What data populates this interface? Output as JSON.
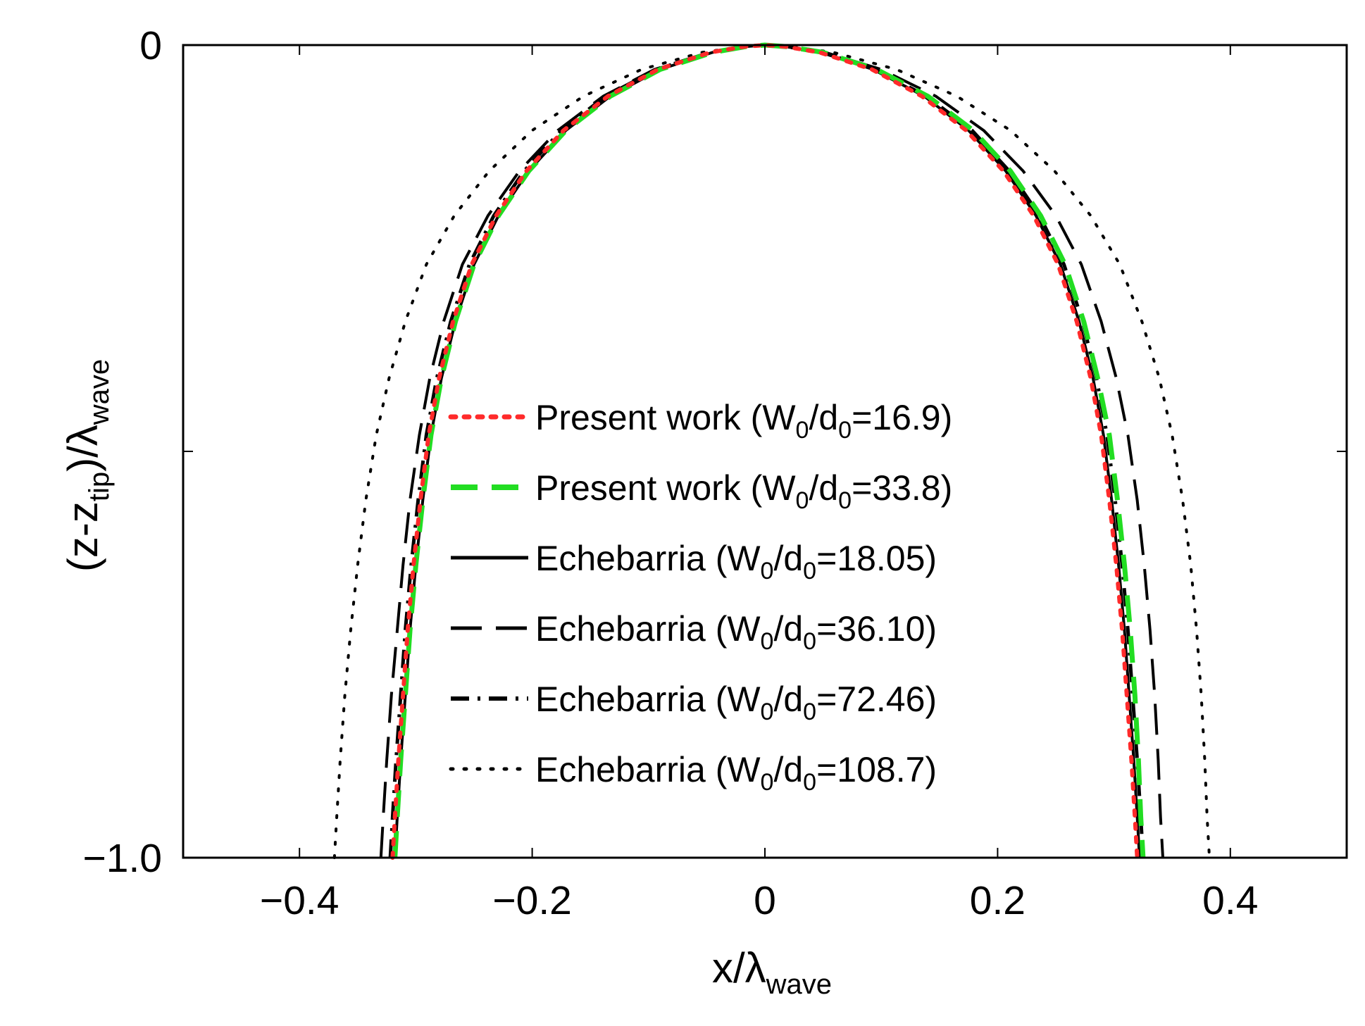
{
  "chart_data": {
    "type": "line",
    "xlabel": {
      "main": "x/λ",
      "sub": "wave"
    },
    "ylabel": {
      "main_a": "(z-z",
      "sub_a": "tip",
      "main_b": ")/λ",
      "sub_b": "wave"
    },
    "xlim": [
      -0.5,
      0.5
    ],
    "ylim": [
      -1.0,
      0.0
    ],
    "xticks": [
      -0.4,
      -0.2,
      0,
      0.2,
      0.4
    ],
    "xtick_labels": [
      "−0.4",
      "−0.2",
      "0",
      "0.2",
      "0.4"
    ],
    "yticks": [
      0,
      -0.5,
      -1.0
    ],
    "ytick_labels": [
      "0",
      "",
      "−1.0"
    ],
    "grid": false,
    "legend_position": "center",
    "series": [
      {
        "name_main": "Present work (W",
        "name_mid": "/d",
        "name_tail": "=16.9)",
        "name_sub": "0",
        "color": "#ff2a2a",
        "style": "dotted",
        "x": [
          -0.32,
          -0.318,
          -0.315,
          -0.311,
          -0.307,
          -0.302,
          -0.296,
          -0.289,
          -0.28,
          -0.268,
          -0.252,
          -0.231,
          -0.205,
          -0.173,
          -0.135,
          -0.092,
          -0.047,
          -0.018,
          0.0,
          0.018,
          0.047,
          0.092,
          0.135,
          0.173,
          0.205,
          0.231,
          0.252,
          0.268,
          0.28,
          0.289,
          0.296,
          0.302,
          0.307,
          0.311,
          0.315,
          0.318,
          0.32
        ],
        "y": [
          -1.0,
          -0.95,
          -0.88,
          -0.8,
          -0.72,
          -0.64,
          -0.56,
          -0.48,
          -0.41,
          -0.34,
          -0.27,
          -0.21,
          -0.155,
          -0.105,
          -0.063,
          -0.03,
          -0.009,
          -0.002,
          0.0,
          -0.002,
          -0.009,
          -0.03,
          -0.063,
          -0.105,
          -0.155,
          -0.21,
          -0.27,
          -0.34,
          -0.41,
          -0.48,
          -0.56,
          -0.64,
          -0.72,
          -0.8,
          -0.88,
          -0.95,
          -1.0
        ]
      },
      {
        "name_main": "Present work (W",
        "name_mid": "/d",
        "name_tail": "=33.8)",
        "name_sub": "0",
        "color": "#22dd22",
        "style": "dashed",
        "x": [
          -0.318,
          -0.316,
          -0.313,
          -0.309,
          -0.305,
          -0.3,
          -0.294,
          -0.287,
          -0.278,
          -0.266,
          -0.25,
          -0.229,
          -0.203,
          -0.171,
          -0.133,
          -0.09,
          -0.045,
          -0.017,
          0.0,
          0.019,
          0.05,
          0.096,
          0.14,
          0.179,
          0.211,
          0.237,
          0.258,
          0.274,
          0.286,
          0.296,
          0.303,
          0.309,
          0.314,
          0.318,
          0.321,
          0.323,
          0.325
        ],
        "y": [
          -1.0,
          -0.95,
          -0.88,
          -0.8,
          -0.72,
          -0.64,
          -0.56,
          -0.48,
          -0.41,
          -0.34,
          -0.27,
          -0.21,
          -0.155,
          -0.105,
          -0.063,
          -0.03,
          -0.009,
          -0.002,
          0.0,
          -0.002,
          -0.009,
          -0.03,
          -0.063,
          -0.105,
          -0.155,
          -0.21,
          -0.27,
          -0.34,
          -0.41,
          -0.48,
          -0.56,
          -0.64,
          -0.72,
          -0.8,
          -0.88,
          -0.95,
          -1.0
        ]
      },
      {
        "name_main": "Echebarria (W",
        "name_mid": "/d",
        "name_tail": "=18.05)",
        "name_sub": "0",
        "color": "#000000",
        "style": "solid",
        "x": [
          -0.318,
          -0.316,
          -0.313,
          -0.309,
          -0.305,
          -0.3,
          -0.294,
          -0.287,
          -0.278,
          -0.266,
          -0.25,
          -0.229,
          -0.203,
          -0.171,
          -0.133,
          -0.09,
          -0.045,
          -0.017,
          0.0,
          0.018,
          0.048,
          0.093,
          0.137,
          0.175,
          0.207,
          0.233,
          0.254,
          0.27,
          0.282,
          0.291,
          0.298,
          0.304,
          0.309,
          0.313,
          0.317,
          0.32,
          0.322
        ],
        "y": [
          -1.0,
          -0.95,
          -0.88,
          -0.8,
          -0.72,
          -0.64,
          -0.56,
          -0.48,
          -0.41,
          -0.34,
          -0.27,
          -0.21,
          -0.155,
          -0.105,
          -0.063,
          -0.03,
          -0.009,
          -0.002,
          0.0,
          -0.002,
          -0.009,
          -0.03,
          -0.063,
          -0.105,
          -0.155,
          -0.21,
          -0.27,
          -0.34,
          -0.41,
          -0.48,
          -0.56,
          -0.64,
          -0.72,
          -0.8,
          -0.88,
          -0.95,
          -1.0
        ]
      },
      {
        "name_main": "Echebarria (W",
        "name_mid": "/d",
        "name_tail": "=36.10)",
        "name_sub": "0",
        "color": "#000000",
        "style": "longdash",
        "x": [
          -0.33,
          -0.328,
          -0.325,
          -0.321,
          -0.316,
          -0.311,
          -0.305,
          -0.297,
          -0.288,
          -0.276,
          -0.26,
          -0.238,
          -0.211,
          -0.178,
          -0.139,
          -0.095,
          -0.048,
          -0.018,
          0.0,
          0.02,
          0.052,
          0.1,
          0.147,
          0.188,
          0.222,
          0.25,
          0.272,
          0.289,
          0.302,
          0.312,
          0.32,
          0.326,
          0.331,
          0.335,
          0.338,
          0.34,
          0.342
        ],
        "y": [
          -1.0,
          -0.95,
          -0.88,
          -0.8,
          -0.72,
          -0.64,
          -0.56,
          -0.48,
          -0.41,
          -0.34,
          -0.27,
          -0.21,
          -0.155,
          -0.105,
          -0.063,
          -0.03,
          -0.009,
          -0.002,
          0.0,
          -0.002,
          -0.009,
          -0.03,
          -0.063,
          -0.105,
          -0.155,
          -0.21,
          -0.27,
          -0.34,
          -0.41,
          -0.48,
          -0.56,
          -0.64,
          -0.72,
          -0.8,
          -0.88,
          -0.95,
          -1.0
        ]
      },
      {
        "name_main": "Echebarria (W",
        "name_mid": "/d",
        "name_tail": "=72.46)",
        "name_sub": "0",
        "color": "#000000",
        "style": "dashdot",
        "x": [
          -0.322,
          -0.32,
          -0.317,
          -0.313,
          -0.309,
          -0.304,
          -0.298,
          -0.291,
          -0.282,
          -0.27,
          -0.254,
          -0.233,
          -0.207,
          -0.175,
          -0.137,
          -0.093,
          -0.047,
          -0.018,
          0.0,
          0.019,
          0.049,
          0.095,
          0.139,
          0.178,
          0.21,
          0.236,
          0.257,
          0.273,
          0.285,
          0.294,
          0.301,
          0.307,
          0.312,
          0.316,
          0.32,
          0.323,
          0.325
        ],
        "y": [
          -1.0,
          -0.95,
          -0.88,
          -0.8,
          -0.72,
          -0.64,
          -0.56,
          -0.48,
          -0.41,
          -0.34,
          -0.27,
          -0.21,
          -0.155,
          -0.105,
          -0.063,
          -0.03,
          -0.009,
          -0.002,
          0.0,
          -0.002,
          -0.009,
          -0.03,
          -0.063,
          -0.105,
          -0.155,
          -0.21,
          -0.27,
          -0.34,
          -0.41,
          -0.48,
          -0.56,
          -0.64,
          -0.72,
          -0.8,
          -0.88,
          -0.95,
          -1.0
        ]
      },
      {
        "name_main": "Echebarria (W",
        "name_mid": "/d",
        "name_tail": "=108.7)",
        "name_sub": "0",
        "color": "#000000",
        "style": "sparsedot",
        "x": [
          -0.37,
          -0.368,
          -0.365,
          -0.361,
          -0.356,
          -0.35,
          -0.343,
          -0.334,
          -0.323,
          -0.309,
          -0.291,
          -0.267,
          -0.237,
          -0.2,
          -0.156,
          -0.106,
          -0.054,
          -0.02,
          0.0,
          0.022,
          0.059,
          0.113,
          0.165,
          0.211,
          0.249,
          0.28,
          0.305,
          0.324,
          0.339,
          0.35,
          0.359,
          0.366,
          0.371,
          0.375,
          0.378,
          0.38,
          0.382
        ],
        "y": [
          -1.0,
          -0.95,
          -0.88,
          -0.8,
          -0.72,
          -0.64,
          -0.56,
          -0.48,
          -0.41,
          -0.34,
          -0.27,
          -0.21,
          -0.155,
          -0.105,
          -0.063,
          -0.03,
          -0.009,
          -0.002,
          0.0,
          -0.002,
          -0.009,
          -0.03,
          -0.063,
          -0.105,
          -0.155,
          -0.21,
          -0.27,
          -0.34,
          -0.41,
          -0.48,
          -0.56,
          -0.64,
          -0.72,
          -0.8,
          -0.88,
          -0.95,
          -1.0
        ]
      }
    ]
  }
}
